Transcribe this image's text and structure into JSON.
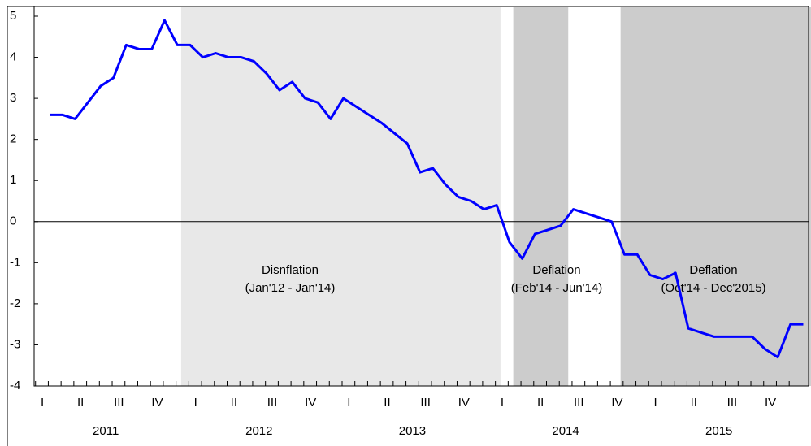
{
  "chart_data": {
    "type": "line",
    "series": [
      {
        "color": "#0000ff",
        "values": [
          2.6,
          2.6,
          2.5,
          2.9,
          3.3,
          3.5,
          4.3,
          4.2,
          4.2,
          4.9,
          4.3,
          4.3,
          4.0,
          4.1,
          4.0,
          4.0,
          3.9,
          3.6,
          3.2,
          3.4,
          3.0,
          2.9,
          2.5,
          3.0,
          2.8,
          2.6,
          2.4,
          2.15,
          1.9,
          1.2,
          1.3,
          0.9,
          0.6,
          0.5,
          0.3,
          0.4,
          -0.5,
          -0.9,
          -0.3,
          -0.2,
          -0.1,
          0.3,
          0.2,
          0.1,
          0.0,
          -0.8,
          -0.8,
          -1.3,
          -1.4,
          -1.25,
          -2.6,
          -2.7,
          -2.8,
          -2.8,
          -2.8,
          -2.8,
          -3.1,
          -3.3,
          -2.5,
          -2.5
        ]
      }
    ],
    "quarter_labels": [
      "I",
      "II",
      "III",
      "IV",
      "I",
      "II",
      "III",
      "IV",
      "I",
      "II",
      "III",
      "IV",
      "I",
      "II",
      "III",
      "IV",
      "I",
      "II",
      "III",
      "IV"
    ],
    "year_labels": [
      "2011",
      "2012",
      "2013",
      "2014",
      "2015"
    ],
    "ylim": [
      -4,
      5
    ],
    "yticks": [
      -4,
      -3,
      -2,
      -1,
      0,
      1,
      2,
      3,
      4,
      5
    ],
    "shaded_regions": [
      {
        "start": 10.3,
        "end": 35.3,
        "color": "#e8e8e8",
        "label": [
          "Disnflation",
          "(Jan'12 - Jan'14)"
        ]
      },
      {
        "start": 36.3,
        "end": 40.6,
        "color": "#cccccc",
        "label": [
          "Deflation",
          "(Feb'14 - Jun'14)"
        ]
      },
      {
        "start": 44.7,
        "end": 59.6,
        "color": "#cccccc",
        "label": [
          "Deflation",
          "(Oct'14 - Dec'2015)"
        ]
      }
    ]
  }
}
